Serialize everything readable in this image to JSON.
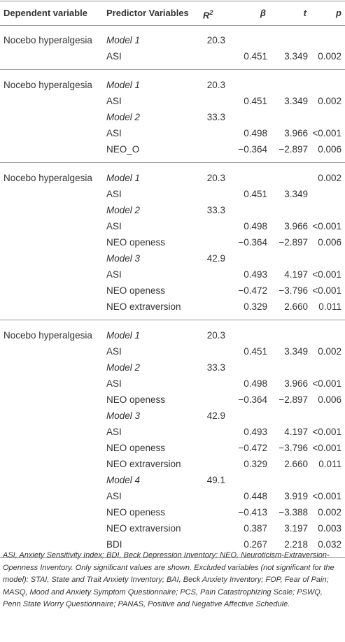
{
  "table": {
    "header": {
      "dependent": "Dependent variable",
      "predictor": "Predictor Variables",
      "r2": "R",
      "r2_sup": "2",
      "beta": "β",
      "t": "t",
      "p": "p"
    },
    "groups": [
      {
        "rows": [
          {
            "dependent": "Nocebo hyperalgesia",
            "predictor": "Model 1",
            "r2": "20.3"
          },
          {
            "predictor": "ASI",
            "beta": "0.451",
            "t": "3.349",
            "p": "0.002"
          }
        ]
      },
      {
        "rows": [
          {
            "dependent": "Nocebo hyperalgesia",
            "predictor": "Model 1",
            "r2": "20.3"
          },
          {
            "predictor": "ASI",
            "beta": "0.451",
            "t": "3.349",
            "p": "0.002"
          },
          {
            "predictor": "Model 2",
            "r2": "33.3"
          },
          {
            "predictor": "ASI",
            "beta": "0.498",
            "t": "3.966",
            "p": "<0.001"
          },
          {
            "predictor": "NEO_O",
            "beta": "−0.364",
            "t": "−2.897",
            "p": "0.006"
          }
        ]
      },
      {
        "rows": [
          {
            "dependent": "Nocebo hyperalgesia",
            "predictor": "Model 1",
            "r2": "20.3",
            "p": "0.002"
          },
          {
            "predictor": "ASI",
            "beta": "0.451",
            "t": "3.349"
          },
          {
            "predictor": "Model 2",
            "r2": "33.3"
          },
          {
            "predictor": "ASI",
            "beta": "0.498",
            "t": "3.966",
            "p": "<0.001"
          },
          {
            "predictor": "NEO openess",
            "beta": "−0.364",
            "t": "−2.897",
            "p": "0.006"
          },
          {
            "predictor": "Model 3",
            "r2": "42.9"
          },
          {
            "predictor": "ASI",
            "beta": "0.493",
            "t": "4.197",
            "p": "<0.001"
          },
          {
            "predictor": "NEO openess",
            "beta": "−0.472",
            "t": "−3.796",
            "p": "<0.001"
          },
          {
            "predictor": "NEO extraversion",
            "beta": "0.329",
            "t": "2.660",
            "p": "0.011"
          }
        ]
      },
      {
        "rows": [
          {
            "dependent": "Nocebo hyperalgesia",
            "predictor": "Model 1",
            "r2": "20.3"
          },
          {
            "predictor": "ASI",
            "beta": "0.451",
            "t": "3.349",
            "p": "0.002"
          },
          {
            "predictor": "Model 2",
            "r2": "33.3"
          },
          {
            "predictor": "ASI",
            "beta": "0.498",
            "t": "3.966",
            "p": "<0.001"
          },
          {
            "predictor": "NEO openess",
            "beta": "−0.364",
            "t": "−2.897",
            "p": "0.006"
          },
          {
            "predictor": "Model 3",
            "r2": "42.9"
          },
          {
            "predictor": "ASI",
            "beta": "0.493",
            "t": "4.197",
            "p": "<0.001"
          },
          {
            "predictor": "NEO openess",
            "beta": "−0.472",
            "t": "−3.796",
            "p": "<0.001"
          },
          {
            "predictor": "NEO extraversion",
            "beta": "0.329",
            "t": "2.660",
            "p": "0.011"
          },
          {
            "predictor": "Model 4",
            "r2": "49.1"
          },
          {
            "predictor": "ASI",
            "beta": "0.448",
            "t": "3.919",
            "p": "<0.001"
          },
          {
            "predictor": "NEO openess",
            "beta": "−0.413",
            "t": "−3.388",
            "p": "0.002"
          },
          {
            "predictor": "NEO extraversion",
            "beta": "0.387",
            "t": "3.197",
            "p": "0.003"
          },
          {
            "predictor": "BDI",
            "beta": "0.267",
            "t": "2.218",
            "p": "0.032"
          }
        ]
      }
    ],
    "footnote": "ASI, Anxiety Sensitivity Index; BDI, Beck Depression Inventory; NEO, Neuroticism-Extraversion-Openness Inventory. Only significant values are shown. Excluded variables (not significant for the model): STAI, State and Trait Anxiety Inventory; BAI, Beck Anxiety Inventory; FOP, Fear of Pain; MASQ, Mood and Anxiety Symptom Questionnaire; PCS, Pain Catastrophizing Scale; PSWQ, Penn State Worry Questionnaire; PANAS, Positive and Negative Affective Schedule."
  }
}
